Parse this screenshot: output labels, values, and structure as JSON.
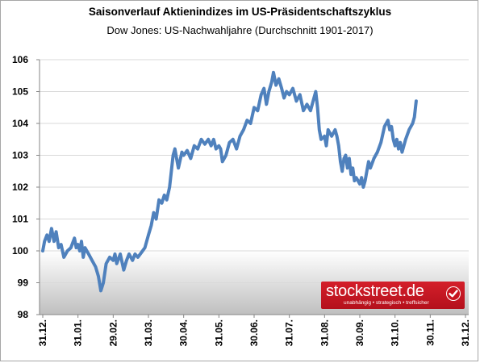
{
  "chart_data": {
    "type": "line",
    "title": "Saisonverlauf Aktienindizes im US-Präsidentschaftszyklus",
    "subtitle": "Dow Jones: US-Nachwahljahre (Durchschnitt 1901-2017)",
    "xlabel": "",
    "ylabel": "",
    "categories": [
      "31.12.",
      "31.01.",
      "29.02.",
      "31.03.",
      "30.04.",
      "31.05.",
      "30.06.",
      "31.07.",
      "31.08.",
      "30.09.",
      "31.10.",
      "30.11.",
      "31.12."
    ],
    "ylim": [
      98,
      106
    ],
    "yticks": [
      98,
      99,
      100,
      101,
      102,
      103,
      104,
      105,
      106
    ],
    "baseline": 100,
    "grid": true,
    "series": [
      {
        "color": "#4f81bd",
        "points": [
          [
            0,
            100.0
          ],
          [
            0.05,
            100.3
          ],
          [
            0.12,
            100.5
          ],
          [
            0.18,
            100.3
          ],
          [
            0.25,
            100.7
          ],
          [
            0.32,
            100.3
          ],
          [
            0.38,
            100.6
          ],
          [
            0.45,
            100.1
          ],
          [
            0.52,
            100.2
          ],
          [
            0.6,
            99.8
          ],
          [
            0.7,
            100.0
          ],
          [
            0.8,
            100.1
          ],
          [
            0.9,
            100.4
          ],
          [
            0.95,
            100.1
          ],
          [
            1.0,
            100.2
          ],
          [
            1.05,
            100.0
          ],
          [
            1.1,
            100.3
          ],
          [
            1.15,
            99.8
          ],
          [
            1.2,
            100.1
          ],
          [
            1.3,
            99.9
          ],
          [
            1.4,
            99.7
          ],
          [
            1.5,
            99.5
          ],
          [
            1.58,
            99.2
          ],
          [
            1.65,
            98.75
          ],
          [
            1.72,
            99.0
          ],
          [
            1.8,
            99.6
          ],
          [
            1.9,
            99.8
          ],
          [
            2.0,
            99.7
          ],
          [
            2.05,
            99.9
          ],
          [
            2.1,
            99.6
          ],
          [
            2.2,
            99.9
          ],
          [
            2.3,
            99.4
          ],
          [
            2.38,
            99.7
          ],
          [
            2.45,
            99.9
          ],
          [
            2.55,
            99.7
          ],
          [
            2.62,
            99.9
          ],
          [
            2.7,
            99.8
          ],
          [
            2.8,
            99.95
          ],
          [
            2.9,
            100.1
          ],
          [
            3.0,
            100.5
          ],
          [
            3.08,
            100.8
          ],
          [
            3.15,
            101.2
          ],
          [
            3.22,
            101.0
          ],
          [
            3.3,
            101.6
          ],
          [
            3.38,
            101.5
          ],
          [
            3.45,
            101.75
          ],
          [
            3.52,
            101.6
          ],
          [
            3.6,
            102.0
          ],
          [
            3.65,
            102.5
          ],
          [
            3.7,
            103.0
          ],
          [
            3.75,
            103.2
          ],
          [
            3.8,
            102.9
          ],
          [
            3.85,
            102.6
          ],
          [
            3.9,
            102.85
          ],
          [
            3.95,
            103.1
          ],
          [
            4.0,
            103.0
          ],
          [
            4.1,
            103.15
          ],
          [
            4.2,
            102.9
          ],
          [
            4.3,
            103.3
          ],
          [
            4.4,
            103.2
          ],
          [
            4.5,
            103.5
          ],
          [
            4.6,
            103.35
          ],
          [
            4.7,
            103.5
          ],
          [
            4.78,
            103.3
          ],
          [
            4.85,
            103.5
          ],
          [
            4.92,
            103.2
          ],
          [
            5.0,
            103.3
          ],
          [
            5.05,
            103.2
          ],
          [
            5.1,
            102.8
          ],
          [
            5.2,
            103.0
          ],
          [
            5.3,
            103.4
          ],
          [
            5.4,
            103.5
          ],
          [
            5.5,
            103.2
          ],
          [
            5.6,
            103.6
          ],
          [
            5.7,
            103.8
          ],
          [
            5.8,
            104.1
          ],
          [
            5.9,
            104.0
          ],
          [
            6.0,
            104.5
          ],
          [
            6.1,
            104.4
          ],
          [
            6.2,
            104.9
          ],
          [
            6.28,
            105.1
          ],
          [
            6.35,
            104.6
          ],
          [
            6.42,
            105.0
          ],
          [
            6.5,
            105.3
          ],
          [
            6.55,
            105.6
          ],
          [
            6.62,
            105.2
          ],
          [
            6.7,
            105.4
          ],
          [
            6.78,
            105.1
          ],
          [
            6.85,
            104.8
          ],
          [
            6.92,
            105.0
          ],
          [
            7.0,
            104.9
          ],
          [
            7.1,
            105.1
          ],
          [
            7.2,
            104.7
          ],
          [
            7.3,
            104.9
          ],
          [
            7.4,
            104.4
          ],
          [
            7.5,
            104.6
          ],
          [
            7.6,
            104.4
          ],
          [
            7.7,
            104.8
          ],
          [
            7.75,
            105.0
          ],
          [
            7.8,
            104.5
          ],
          [
            7.85,
            103.8
          ],
          [
            7.9,
            103.5
          ],
          [
            8.0,
            103.6
          ],
          [
            8.05,
            103.3
          ],
          [
            8.1,
            103.8
          ],
          [
            8.2,
            103.6
          ],
          [
            8.3,
            103.8
          ],
          [
            8.35,
            103.6
          ],
          [
            8.4,
            103.3
          ],
          [
            8.45,
            102.8
          ],
          [
            8.5,
            102.5
          ],
          [
            8.55,
            102.9
          ],
          [
            8.6,
            103.0
          ],
          [
            8.65,
            102.6
          ],
          [
            8.7,
            102.9
          ],
          [
            8.75,
            102.4
          ],
          [
            8.8,
            102.6
          ],
          [
            8.85,
            102.2
          ],
          [
            8.9,
            102.3
          ],
          [
            9.0,
            102.1
          ],
          [
            9.05,
            102.3
          ],
          [
            9.1,
            102.0
          ],
          [
            9.15,
            102.2
          ],
          [
            9.2,
            102.5
          ],
          [
            9.25,
            102.8
          ],
          [
            9.3,
            102.6
          ],
          [
            9.35,
            102.75
          ],
          [
            9.4,
            102.9
          ],
          [
            9.5,
            103.1
          ],
          [
            9.6,
            103.4
          ],
          [
            9.7,
            103.9
          ],
          [
            9.8,
            104.1
          ],
          [
            9.85,
            103.8
          ],
          [
            9.9,
            103.9
          ],
          [
            9.95,
            103.5
          ],
          [
            10.0,
            103.3
          ],
          [
            10.05,
            103.5
          ],
          [
            10.1,
            103.2
          ],
          [
            10.15,
            103.4
          ],
          [
            10.2,
            103.1
          ],
          [
            10.3,
            103.5
          ],
          [
            10.4,
            103.8
          ],
          [
            10.5,
            104.0
          ],
          [
            10.55,
            104.2
          ],
          [
            10.6,
            104.7
          ]
        ]
      }
    ]
  },
  "logo": {
    "name": "stockstreet.de",
    "tagline": "unabhängig • strategisch • treffsicher",
    "brand_color": "#c8151f"
  },
  "colors": {
    "line": "#4f81bd",
    "grid": "#d9d9d9",
    "axis": "#868686",
    "below_shade_top": "#ffffff",
    "below_shade_bottom": "#bfbfbf"
  }
}
